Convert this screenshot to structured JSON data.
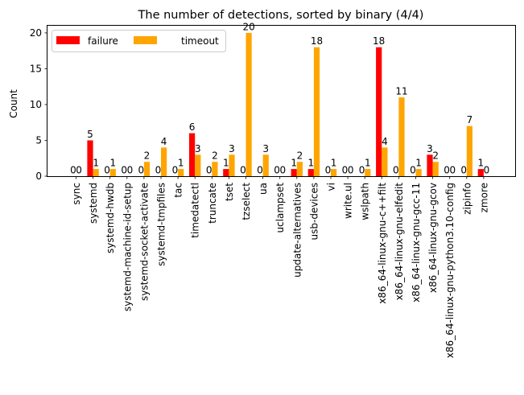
{
  "chart_data": {
    "type": "bar",
    "title": "The number of detections, sorted by binary (4/4)",
    "xlabel": "",
    "ylabel": "Count",
    "ylim": [
      0,
      21
    ],
    "yticks": [
      0,
      5,
      10,
      15,
      20
    ],
    "grid": false,
    "legend_position": "top-left",
    "categories": [
      "sync",
      "systemd",
      "systemd-hwdb",
      "systemd-machine-id-setup",
      "systemd-socket-activate",
      "systemd-tmpfiles",
      "tac",
      "timedatectl",
      "truncate",
      "tset",
      "tzselect",
      "ua",
      "uclampset",
      "update-alternatives",
      "usb-devices",
      "vi",
      "write.ul",
      "wslpath",
      "x86_64-linux-gnu-c++filt",
      "x86_64-linux-gnu-elfedit",
      "x86_64-linux-gnu-gcc-11",
      "x86_64-linux-gnu-gcov",
      "x86_64-linux-gnu-python3.10-config",
      "zipinfo",
      "zmore"
    ],
    "series": [
      {
        "name": "failure",
        "color": "#ff0000",
        "values": [
          0,
          5,
          0,
          0,
          0,
          0,
          0,
          6,
          0,
          1,
          0,
          0,
          0,
          1,
          1,
          0,
          0,
          0,
          18,
          0,
          0,
          3,
          0,
          0,
          1
        ]
      },
      {
        "name": "timeout",
        "color": "#ffa500",
        "values": [
          0,
          1,
          1,
          0,
          2,
          4,
          1,
          3,
          2,
          3,
          20,
          3,
          0,
          2,
          18,
          1,
          0,
          1,
          4,
          11,
          1,
          2,
          0,
          7,
          0
        ]
      }
    ]
  }
}
